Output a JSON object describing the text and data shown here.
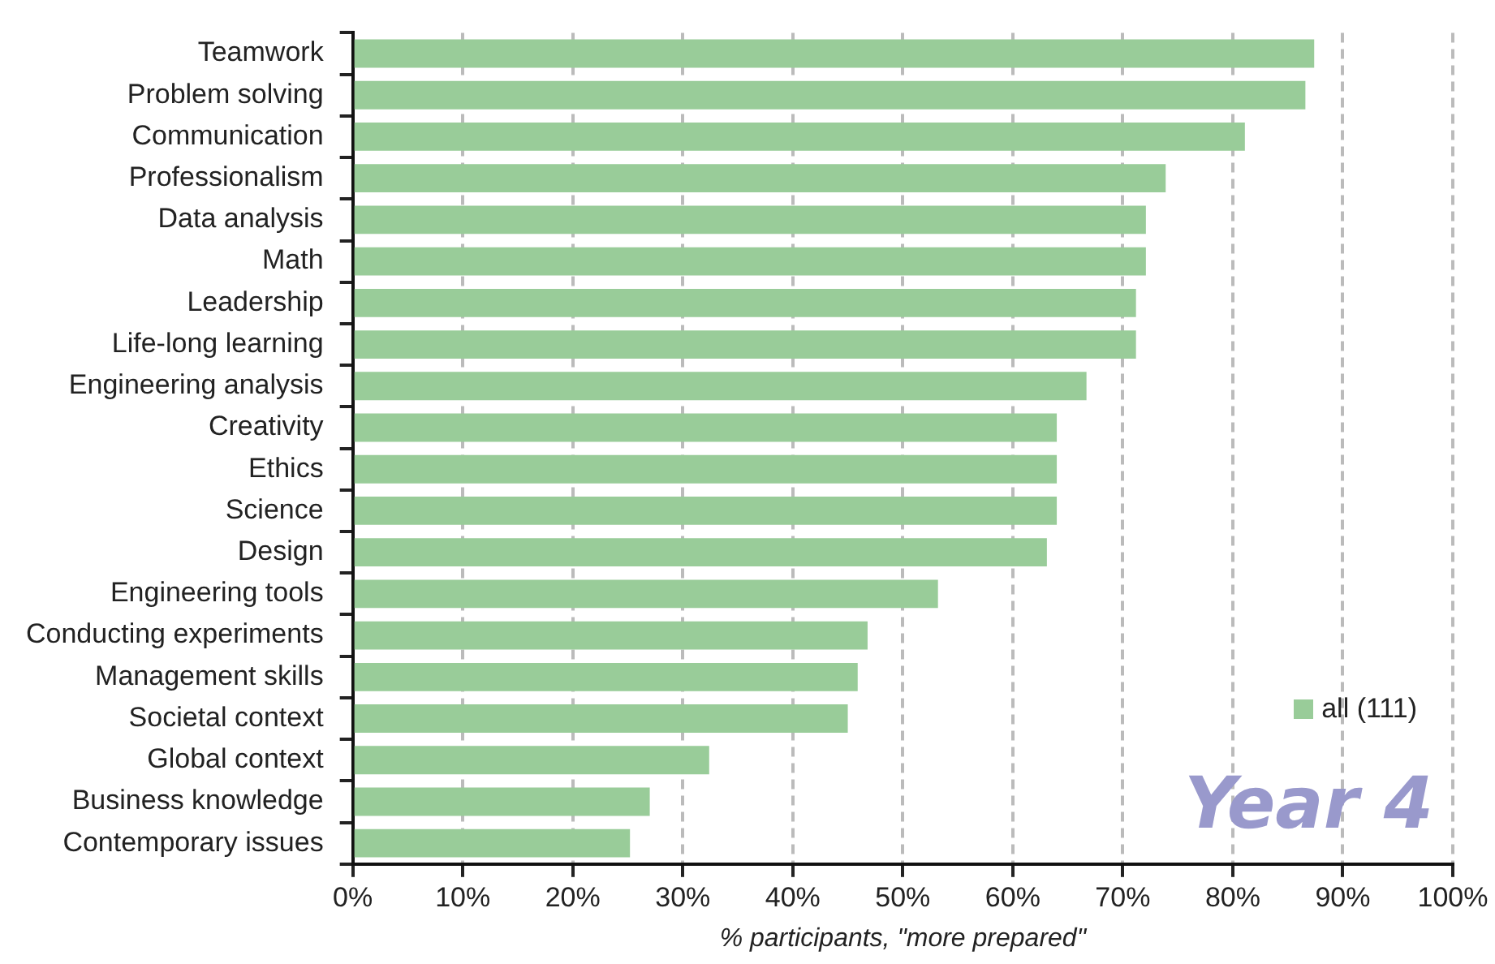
{
  "chart_data": {
    "type": "bar",
    "orientation": "horizontal",
    "xlabel": "% participants, \"more prepared\"",
    "categories": [
      "Teamwork",
      "Problem solving",
      "Communication",
      "Professionalism",
      "Data analysis",
      "Math",
      "Leadership",
      "Life-long learning",
      "Engineering analysis",
      "Creativity",
      "Ethics",
      "Science",
      "Design",
      "Engineering tools",
      "Conducting experiments",
      "Management skills",
      "Societal context",
      "Global context",
      "Business knowledge",
      "Contemporary issues"
    ],
    "series": [
      {
        "name": "all (111)",
        "color": "#99cc99",
        "values": [
          87.4,
          86.6,
          81.1,
          73.9,
          72.1,
          72.1,
          71.2,
          71.2,
          66.7,
          64.0,
          64.0,
          64.0,
          63.1,
          53.2,
          46.8,
          45.9,
          45.0,
          32.4,
          27.0,
          25.2
        ]
      }
    ],
    "xlim": [
      0,
      100
    ],
    "xticks": [
      {
        "value": 0,
        "label": "0%"
      },
      {
        "value": 10,
        "label": "10%"
      },
      {
        "value": 20,
        "label": "20%"
      },
      {
        "value": 30,
        "label": "30%"
      },
      {
        "value": 40,
        "label": "40%"
      },
      {
        "value": 50,
        "label": "50%"
      },
      {
        "value": 60,
        "label": "60%"
      },
      {
        "value": 70,
        "label": "70%"
      },
      {
        "value": 80,
        "label": "80%"
      },
      {
        "value": 90,
        "label": "90%"
      },
      {
        "value": 100,
        "label": "100%"
      }
    ],
    "grid": "x",
    "legend": "bottom right",
    "annotations": [
      "Year 4"
    ]
  }
}
